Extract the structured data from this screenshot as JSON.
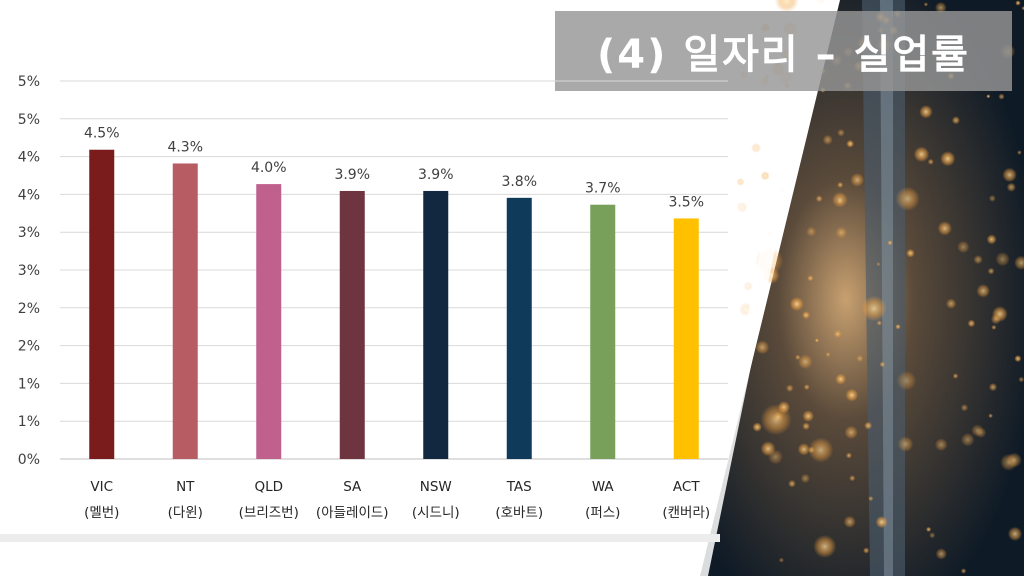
{
  "slide": {
    "title": "(4) 일자리 – 실업률"
  },
  "chart_data": {
    "type": "bar",
    "categories": [
      "VIC",
      "NT",
      "QLD",
      "SA",
      "NSW",
      "TAS",
      "WA",
      "ACT"
    ],
    "category_sublabels": [
      "(멜번)",
      "(다윈)",
      "(브리즈번)",
      "(아들레이드)",
      "(시드니)",
      "(호바트)",
      "(퍼스)",
      "(캔버라)"
    ],
    "values": [
      4.5,
      4.3,
      4.0,
      3.9,
      3.9,
      3.8,
      3.7,
      3.5
    ],
    "data_labels": [
      "4.5%",
      "4.3%",
      "4.0%",
      "3.9%",
      "3.9%",
      "3.8%",
      "3.7%",
      "3.5%"
    ],
    "colors": [
      "#7b1c1c",
      "#b85c64",
      "#c0608c",
      "#6e3440",
      "#122740",
      "#0f3a5a",
      "#78a05a",
      "#ffc000"
    ],
    "ytick_labels": [
      "0%",
      "1%",
      "1%",
      "2%",
      "2%",
      "3%",
      "3%",
      "4%",
      "4%",
      "5%",
      "5%"
    ],
    "ylim": [
      0,
      5.5
    ],
    "grid": true,
    "title": "",
    "xlabel": "",
    "ylabel": ""
  }
}
